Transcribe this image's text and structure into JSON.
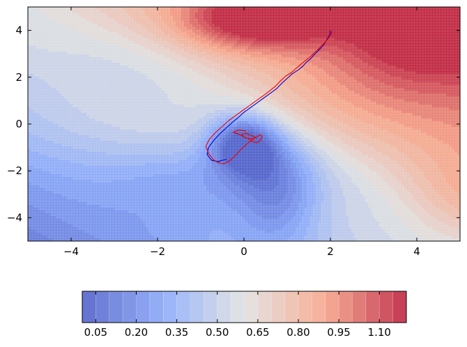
{
  "chart_data": {
    "type": "contour",
    "title": "",
    "xlabel": "",
    "ylabel": "",
    "xlim": [
      -5,
      5
    ],
    "ylim": [
      -5,
      5
    ],
    "grid": false,
    "x_ticks": [
      -4,
      -2,
      0,
      2,
      4
    ],
    "y_ticks": [
      -4,
      -2,
      0,
      2,
      4
    ],
    "colormap": "coolwarm",
    "colorbar": {
      "orientation": "horizontal",
      "position": "bottom",
      "range": [
        0.0,
        1.2
      ],
      "levels": [
        0.0,
        0.05,
        0.1,
        0.15,
        0.2,
        0.25,
        0.3,
        0.35,
        0.4,
        0.45,
        0.5,
        0.55,
        0.6,
        0.65,
        0.7,
        0.75,
        0.8,
        0.85,
        0.9,
        0.95,
        1.0,
        1.05,
        1.1,
        1.15
      ],
      "tick_values": [
        0.05,
        0.2,
        0.35,
        0.5,
        0.65,
        0.8,
        0.95,
        1.1
      ],
      "tick_labels": [
        "0.05",
        "0.20",
        "0.35",
        "0.50",
        "0.65",
        "0.80",
        "0.95",
        "1.10"
      ]
    },
    "series": [
      {
        "color": "#0000cc",
        "x": [
          2.0,
          2.0,
          1.95,
          1.9,
          1.85,
          1.78,
          1.7,
          1.62,
          1.55,
          1.45,
          1.35,
          1.25,
          1.12,
          1.0,
          0.88,
          0.75,
          0.6,
          0.45,
          0.3,
          0.15,
          0.0,
          -0.12,
          -0.25,
          -0.4,
          -0.55,
          -0.7,
          -0.82,
          -0.85,
          -0.75,
          -0.6,
          -0.5,
          -0.4
        ],
        "y": [
          4.0,
          3.85,
          3.7,
          3.55,
          3.4,
          3.25,
          3.1,
          2.95,
          2.8,
          2.65,
          2.45,
          2.3,
          2.15,
          1.95,
          1.75,
          1.5,
          1.3,
          1.1,
          0.9,
          0.7,
          0.5,
          0.3,
          0.1,
          -0.15,
          -0.4,
          -0.7,
          -1.0,
          -1.3,
          -1.55,
          -1.6,
          -1.55,
          -1.5
        ]
      },
      {
        "color": "#ee0000",
        "x": [
          2.05,
          2.0,
          1.95,
          1.88,
          1.8,
          1.72,
          1.63,
          1.55,
          1.45,
          1.35,
          1.22,
          1.1,
          0.97,
          0.85,
          0.72,
          0.55,
          0.4,
          0.25,
          0.1,
          -0.05,
          -0.2,
          -0.35,
          -0.5,
          -0.65,
          -0.8,
          -0.88,
          -0.82,
          -0.72,
          -0.6,
          -0.48,
          -0.35,
          -0.2,
          -0.05,
          0.1,
          0.25,
          0.38,
          0.42,
          0.38,
          0.3,
          0.2,
          0.1,
          0.0,
          -0.05,
          0.05,
          0.18,
          0.28,
          0.2,
          0.05,
          -0.1,
          -0.25,
          -0.1,
          0.05
        ],
        "y": [
          3.95,
          3.8,
          3.65,
          3.5,
          3.35,
          3.2,
          3.05,
          2.9,
          2.75,
          2.6,
          2.4,
          2.2,
          2.05,
          1.85,
          1.6,
          1.35,
          1.15,
          0.95,
          0.75,
          0.55,
          0.35,
          0.15,
          -0.1,
          -0.35,
          -0.65,
          -0.95,
          -1.25,
          -1.5,
          -1.65,
          -1.7,
          -1.6,
          -1.35,
          -1.05,
          -0.8,
          -0.6,
          -0.45,
          -0.55,
          -0.7,
          -0.8,
          -0.75,
          -0.62,
          -0.55,
          -0.45,
          -0.4,
          -0.5,
          -0.58,
          -0.62,
          -0.6,
          -0.45,
          -0.35,
          -0.25,
          -0.3
        ]
      }
    ],
    "field": {
      "base_plane": {
        "intercept": 0.62,
        "dx": 0.05,
        "dy": 0.05
      },
      "bumps": [
        {
          "x": 0.0,
          "y": -0.8,
          "amp": -0.48,
          "sx": 0.55,
          "sy": 0.85
        },
        {
          "x": 0.8,
          "y": -3.0,
          "amp": -0.28,
          "sx": 0.7,
          "sy": 1.5
        },
        {
          "x": -1.2,
          "y": -2.5,
          "amp": -0.15,
          "sx": 1.3,
          "sy": 1.3
        },
        {
          "x": 0.3,
          "y": -1.6,
          "amp": -0.14,
          "sx": 0.8,
          "sy": 1.0
        },
        {
          "x": 0.3,
          "y": 4.5,
          "amp": 0.5,
          "sx": 1.2,
          "sy": 0.9
        },
        {
          "x": 4.6,
          "y": 4.2,
          "amp": 0.32,
          "sx": 1.6,
          "sy": 1.2
        },
        {
          "x": 3.5,
          "y": 2.2,
          "amp": 0.14,
          "sx": 1.6,
          "sy": 1.4
        },
        {
          "x": 5.0,
          "y": -3.5,
          "amp": 0.16,
          "sx": 1.2,
          "sy": 1.6
        },
        {
          "x": -4.5,
          "y": 4.2,
          "amp": 0.06,
          "sx": 1.6,
          "sy": 1.2
        }
      ],
      "ridges": [
        {
          "x0": 0.0,
          "y0": 0.0,
          "dx": -0.707,
          "dy": 0.707,
          "amp": -0.08,
          "s": 0.9
        },
        {
          "x0": -1.2,
          "y0": 0.0,
          "dx": 1.0,
          "dy": 0.0,
          "amp": 0.05,
          "s": 1.3
        }
      ]
    }
  }
}
